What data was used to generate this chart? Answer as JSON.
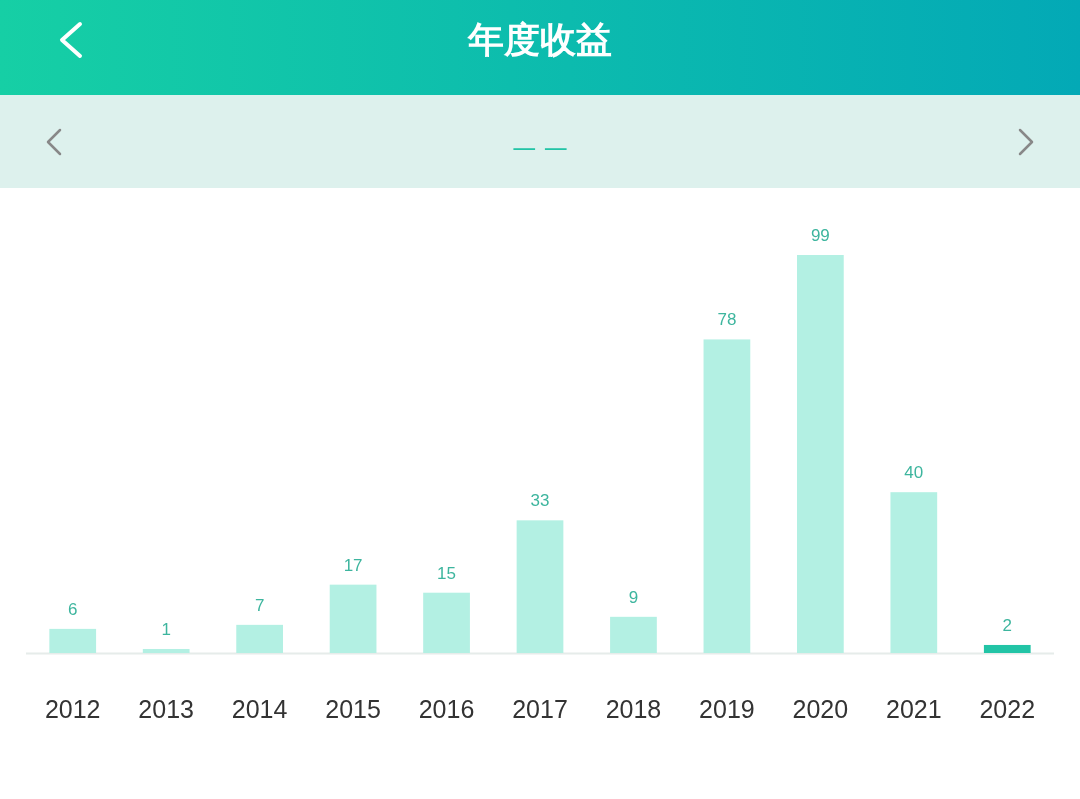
{
  "chart_data": {
    "type": "bar",
    "title": "年度收益",
    "subtitle": "— —",
    "categories": [
      "2012",
      "2013",
      "2014",
      "2015",
      "2016",
      "2017",
      "2018",
      "2019",
      "2020",
      "2021",
      "2022"
    ],
    "values": [
      6,
      1,
      7,
      17,
      15,
      33,
      9,
      78,
      99,
      40,
      2
    ],
    "colors": [
      "#b3f0e3",
      "#b3f0e3",
      "#b3f0e3",
      "#b3f0e3",
      "#b3f0e3",
      "#b3f0e3",
      "#b3f0e3",
      "#b3f0e3",
      "#b3f0e3",
      "#b3f0e3",
      "#22c4a6"
    ],
    "data_labels": true
  }
}
